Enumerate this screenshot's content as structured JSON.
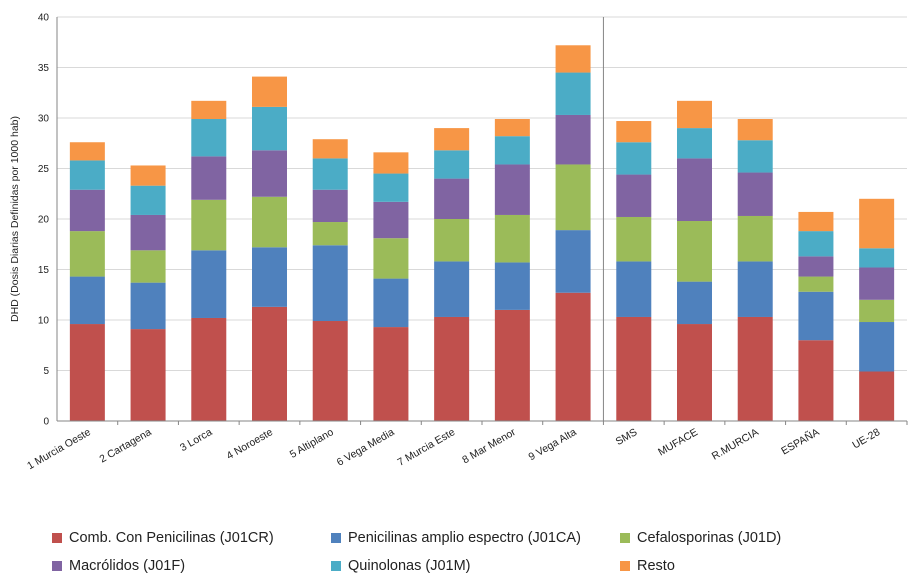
{
  "chart_data": {
    "type": "bar",
    "stacked": true,
    "title": "",
    "xlabel": "",
    "ylabel": "DHD (Dosis Diarias Definidas por 1000 hab)",
    "ylim": [
      0,
      40
    ],
    "yticks": [
      0,
      5,
      10,
      15,
      20,
      25,
      30,
      35,
      40
    ],
    "grid": true,
    "legend_position": "bottom",
    "categories": [
      "1 Murcia Oeste",
      "2 Cartagena",
      "3 Lorca",
      "4 Noroeste",
      "5 Altiplano",
      "6 Vega Media",
      "7 Murcia Este",
      "8 Mar Menor",
      "9 Vega Alta",
      "SMS",
      "MUFACE",
      "R.MURCIA",
      "ESPAÑA",
      "UE-28"
    ],
    "series": [
      {
        "name": "Comb. Con Penicilinas (J01CR)",
        "color": "#C0504D",
        "values": [
          9.6,
          9.1,
          10.2,
          11.3,
          9.9,
          9.3,
          10.3,
          11.0,
          12.7,
          10.3,
          9.6,
          10.3,
          8.0,
          4.9
        ]
      },
      {
        "name": "Penicilinas amplio espectro (J01CA)",
        "color": "#4F81BD",
        "values": [
          4.7,
          4.6,
          6.7,
          5.9,
          7.5,
          4.8,
          5.5,
          4.7,
          6.2,
          5.5,
          4.2,
          5.5,
          4.8,
          4.9
        ]
      },
      {
        "name": "Cefalosporinas (J01D)",
        "color": "#9BBB59",
        "values": [
          4.5,
          3.2,
          5.0,
          5.0,
          2.3,
          4.0,
          4.2,
          4.7,
          6.5,
          4.4,
          6.0,
          4.5,
          1.5,
          2.2
        ]
      },
      {
        "name": "Macrólidos (J01F)",
        "color": "#8064A2",
        "values": [
          4.1,
          3.5,
          4.3,
          4.6,
          3.2,
          3.6,
          4.0,
          5.0,
          4.9,
          4.2,
          6.2,
          4.3,
          2.0,
          3.2
        ]
      },
      {
        "name": "Quinolonas (J01M)",
        "color": "#4BACC6",
        "values": [
          2.9,
          2.9,
          3.7,
          4.3,
          3.1,
          2.8,
          2.8,
          2.8,
          4.2,
          3.2,
          3.0,
          3.2,
          2.5,
          1.9
        ]
      },
      {
        "name": "Resto",
        "color": "#F79646",
        "values": [
          1.8,
          2.0,
          1.8,
          3.0,
          1.9,
          2.1,
          2.2,
          1.7,
          2.7,
          2.1,
          2.7,
          2.1,
          1.9,
          4.9
        ]
      }
    ]
  }
}
